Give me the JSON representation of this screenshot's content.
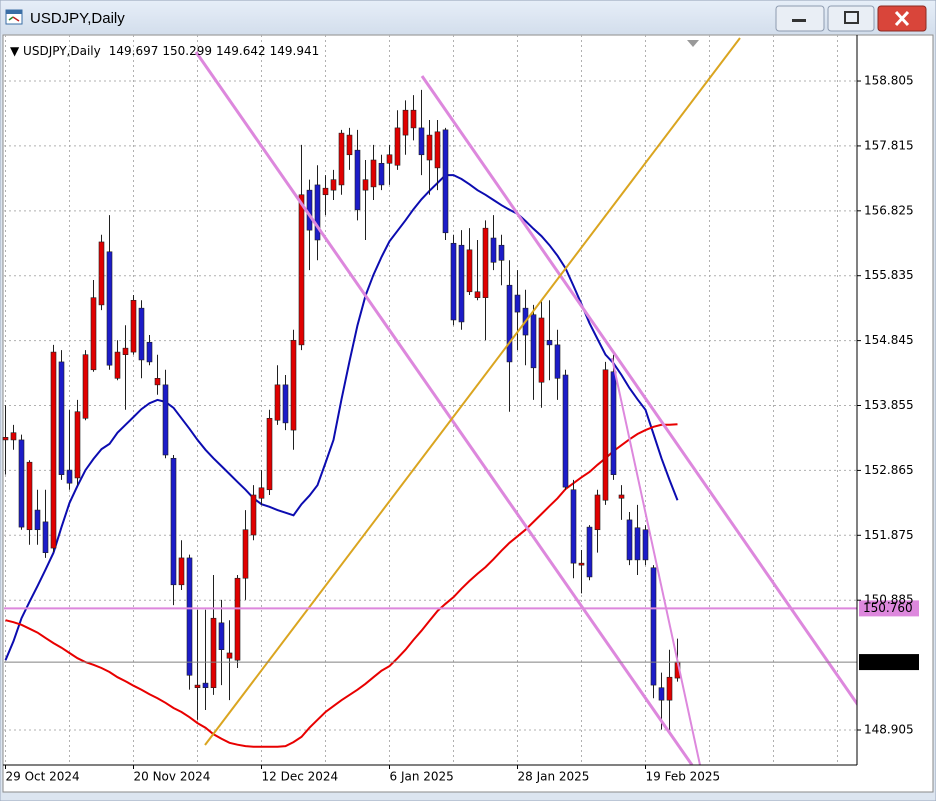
{
  "window": {
    "title": "USDJPY,Daily"
  },
  "chart_data": {
    "type": "candlestick",
    "title": "USDJPY,Daily",
    "categories": [
      "29 Oct 2024",
      null,
      null,
      null,
      null,
      null,
      null,
      null,
      null,
      null,
      null,
      null,
      null,
      null,
      null,
      null,
      "20 Nov 2024",
      null,
      null,
      null,
      null,
      null,
      null,
      null,
      null,
      null,
      null,
      null,
      null,
      null,
      null,
      null,
      "12 Dec 2024",
      null,
      null,
      null,
      null,
      null,
      null,
      null,
      null,
      null,
      null,
      null,
      null,
      null,
      null,
      null,
      "6 Jan 2025",
      null,
      null,
      null,
      null,
      null,
      null,
      null,
      null,
      null,
      null,
      null,
      null,
      null,
      null,
      null,
      "28 Jan 2025",
      null,
      null,
      null,
      null,
      null,
      null,
      null,
      null,
      null,
      null,
      null,
      null,
      null,
      null,
      null,
      "19 Feb 2025",
      null,
      null,
      null,
      null
    ],
    "open": [
      153.33,
      153.33,
      153.33,
      151.96,
      152.26,
      152.08,
      151.68,
      154.52,
      152.87,
      152.75,
      153.66,
      154.4,
      155.39,
      156.2,
      154.27,
      154.63,
      154.67,
      155.34,
      154.82,
      154.17,
      154.17,
      153.05,
      151.12,
      151.53,
      149.55,
      149.62,
      149.55,
      150.54,
      150.0,
      149.97,
      151.22,
      151.88,
      152.44,
      152.57,
      153.63,
      154.17,
      153.48,
      154.78,
      157.14,
      157.22,
      157.07,
      157.14,
      157.22,
      157.68,
      157.75,
      157.14,
      157.19,
      157.55,
      157.55,
      157.52,
      157.98,
      158.09,
      158.09,
      157.6,
      157.48,
      158.06,
      156.33,
      156.3,
      155.59,
      155.5,
      155.5,
      156.41,
      156.3,
      155.69,
      155.54,
      155.34,
      155.24,
      154.21,
      154.85,
      154.78,
      154.32,
      152.57,
      151.42,
      152.0,
      151.96,
      152.41,
      154.37,
      152.44,
      152.11,
      151.99,
      151.96,
      151.38,
      149.55,
      149.36,
      149.697
    ],
    "high": [
      153.86,
      153.56,
      153.41,
      153.02,
      152.57,
      152.57,
      154.78,
      154.7,
      153.79,
      153.94,
      154.7,
      155.77,
      156.46,
      156.76,
      154.85,
      155.08,
      155.54,
      155.46,
      154.93,
      154.63,
      154.4,
      153.1,
      151.8,
      151.58,
      150.74,
      150.74,
      151.27,
      150.89,
      150.58,
      151.27,
      152.26,
      152.64,
      152.87,
      153.79,
      154.47,
      154.32,
      155.01,
      157.83,
      157.3,
      157.52,
      157.37,
      157.45,
      158.06,
      158.09,
      158.06,
      157.6,
      157.83,
      157.68,
      157.83,
      158.36,
      158.51,
      158.59,
      158.67,
      158.21,
      158.21,
      158.09,
      156.46,
      156.53,
      156.56,
      156.38,
      156.68,
      156.76,
      156.46,
      156.07,
      155.92,
      155.62,
      155.39,
      155.46,
      155.46,
      155.01,
      154.4,
      152.72,
      151.65,
      152.03,
      152.57,
      154.52,
      154.63,
      152.64,
      152.23,
      152.34,
      152.03,
      151.42,
      149.78,
      150.13,
      150.299
    ],
    "low": [
      152.8,
      153.18,
      151.96,
      151.73,
      151.73,
      151.53,
      151.62,
      152.72,
      152.57,
      152.64,
      153.63,
      154.37,
      155.31,
      154.4,
      154.24,
      153.79,
      154.63,
      154.27,
      154.47,
      154.02,
      153.05,
      150.81,
      151.04,
      149.52,
      149.06,
      149.21,
      149.44,
      149.59,
      149.36,
      149.85,
      150.89,
      151.8,
      152.34,
      152.49,
      153.56,
      153.48,
      153.18,
      154.7,
      155.92,
      156.07,
      156.76,
      156.99,
      157.07,
      157.45,
      156.68,
      156.38,
      156.99,
      157.14,
      157.22,
      157.45,
      157.68,
      157.9,
      157.37,
      157.07,
      157.14,
      156.38,
      155.08,
      155.01,
      155.54,
      155.46,
      154.85,
      155.92,
      155.69,
      153.76,
      154.7,
      154.47,
      153.94,
      153.82,
      154.24,
      153.94,
      152.57,
      151.22,
      150.99,
      151.19,
      151.61,
      152.34,
      152.72,
      152.11,
      151.42,
      151.27,
      151.42,
      149.39,
      148.91,
      148.91,
      149.642
    ],
    "close": [
      153.37,
      153.44,
      152.0,
      152.99,
      151.96,
      151.61,
      154.67,
      152.8,
      152.67,
      153.76,
      154.63,
      155.5,
      156.35,
      154.47,
      154.67,
      154.73,
      155.46,
      154.55,
      154.52,
      154.27,
      153.1,
      151.12,
      151.53,
      149.74,
      149.59,
      149.55,
      150.61,
      150.13,
      150.08,
      151.22,
      151.96,
      152.49,
      152.6,
      153.66,
      154.17,
      153.59,
      154.85,
      157.07,
      156.53,
      156.38,
      157.17,
      157.3,
      158.01,
      157.98,
      156.84,
      157.3,
      157.6,
      157.22,
      157.68,
      158.09,
      158.36,
      158.36,
      157.68,
      157.98,
      158.03,
      156.49,
      155.16,
      155.13,
      156.23,
      155.59,
      156.56,
      156.04,
      156.07,
      154.52,
      155.28,
      154.93,
      154.43,
      155.19,
      154.78,
      154.27,
      152.61,
      151.45,
      151.45,
      151.24,
      152.49,
      154.4,
      152.8,
      152.49,
      151.5,
      151.5,
      151.5,
      149.59,
      149.36,
      149.71,
      149.941
    ],
    "up_color": "#e00000",
    "down_color": "#1c1cc8",
    "wick_color": "#202020",
    "series": [
      {
        "color": "#0c0cb0",
        "values": [
          149.97,
          150.26,
          150.61,
          150.86,
          151.1,
          151.35,
          151.61,
          152.0,
          152.37,
          152.63,
          152.87,
          153.04,
          153.19,
          153.27,
          153.44,
          153.56,
          153.68,
          153.8,
          153.89,
          153.94,
          153.91,
          153.82,
          153.66,
          153.5,
          153.33,
          153.18,
          153.05,
          152.93,
          152.81,
          152.69,
          152.57,
          152.44,
          152.35,
          152.31,
          152.26,
          152.22,
          152.18,
          152.35,
          152.48,
          152.64,
          152.98,
          153.33,
          153.95,
          154.53,
          155.08,
          155.53,
          155.85,
          156.12,
          156.36,
          156.52,
          156.68,
          156.85,
          157.0,
          157.13,
          157.25,
          157.37,
          157.37,
          157.31,
          157.23,
          157.14,
          157.07,
          156.99,
          156.91,
          156.84,
          156.78,
          156.67,
          156.55,
          156.44,
          156.3,
          156.14,
          155.95,
          155.68,
          155.4,
          155.11,
          154.87,
          154.63,
          154.5,
          154.32,
          154.12,
          153.95,
          153.79,
          153.42,
          153.05,
          152.72,
          152.41
        ]
      },
      {
        "color": "#e80000",
        "values": [
          150.58,
          150.55,
          150.51,
          150.45,
          150.39,
          150.31,
          150.23,
          150.16,
          150.08,
          150.0,
          149.94,
          149.9,
          149.85,
          149.79,
          149.71,
          149.65,
          149.58,
          149.52,
          149.45,
          149.39,
          149.32,
          149.24,
          149.18,
          149.1,
          149.01,
          148.94,
          148.84,
          148.77,
          148.71,
          148.68,
          148.66,
          148.65,
          148.65,
          148.65,
          148.65,
          148.66,
          148.72,
          148.8,
          148.94,
          149.06,
          149.18,
          149.27,
          149.36,
          149.44,
          149.52,
          149.61,
          149.71,
          149.81,
          149.88,
          150.0,
          150.13,
          150.28,
          150.42,
          150.57,
          150.72,
          150.83,
          150.93,
          151.06,
          151.18,
          151.29,
          151.39,
          151.51,
          151.64,
          151.76,
          151.86,
          151.96,
          152.08,
          152.2,
          152.32,
          152.44,
          152.58,
          152.67,
          152.76,
          152.84,
          152.95,
          153.05,
          153.16,
          153.25,
          153.34,
          153.42,
          153.48,
          153.53,
          153.56,
          153.56,
          153.57
        ]
      }
    ],
    "hlines": [
      {
        "value": 150.76,
        "label": "150.760",
        "color": "#dd88dd"
      }
    ],
    "ylim": [
      148.371,
      159.507
    ],
    "yticks": [
      158.805,
      157.815,
      156.825,
      155.835,
      154.845,
      153.855,
      152.865,
      151.875,
      150.885,
      148.905
    ],
    "grid": true
  }
}
